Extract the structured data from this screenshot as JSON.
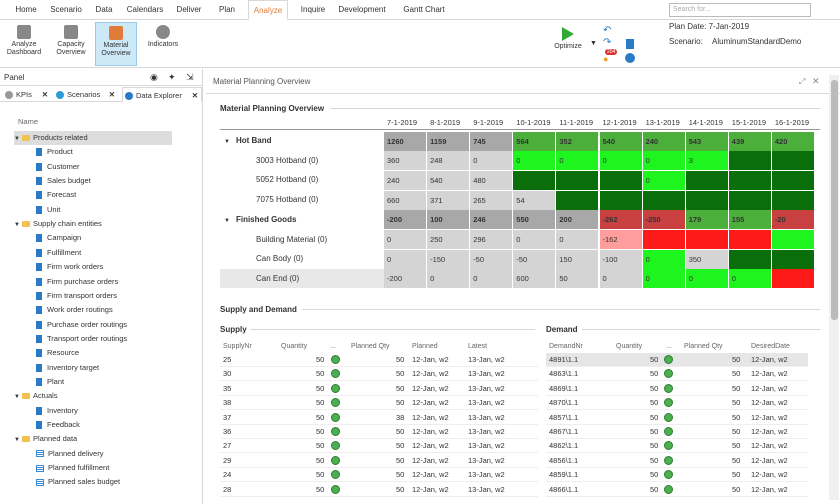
{
  "menu": {
    "tabs": [
      "Home",
      "Scenario",
      "Data",
      "Calendars",
      "Deliver",
      "Plan",
      "Analyze",
      "Inquire",
      "Development",
      "Gantt Chart"
    ],
    "active": "Analyze"
  },
  "ribbon": {
    "buttons": [
      "Analyze Dashboard",
      "Capacity Overview",
      "Material Overview",
      "Indicators"
    ],
    "active": "Material Overview",
    "optimize": "Optimize",
    "badge": "204",
    "search_placeholder": "Search for...",
    "plan_date": "Plan Date: 7-Jan-2019",
    "scenario_label": "Scenario:",
    "scenario_value": "AluminumStandardDemo"
  },
  "panel": {
    "title": "Panel",
    "tabs": [
      "KPIs",
      "Scenarios",
      "Data Explorer"
    ],
    "active_tab": "Data Explorer",
    "tree_header": "Name",
    "tree": [
      {
        "label": "Products related",
        "level": 0,
        "kind": "folder",
        "sel": true
      },
      {
        "label": "Product",
        "level": 1,
        "kind": "doc"
      },
      {
        "label": "Customer",
        "level": 1,
        "kind": "doc"
      },
      {
        "label": "Sales budget",
        "level": 1,
        "kind": "doc"
      },
      {
        "label": "Forecast",
        "level": 1,
        "kind": "doc"
      },
      {
        "label": "Unit",
        "level": 1,
        "kind": "doc"
      },
      {
        "label": "Supply chain entities",
        "level": 0,
        "kind": "folder"
      },
      {
        "label": "Campaign",
        "level": 1,
        "kind": "doc"
      },
      {
        "label": "Fulfillment",
        "level": 1,
        "kind": "doc"
      },
      {
        "label": "Firm work orders",
        "level": 1,
        "kind": "doc"
      },
      {
        "label": "Firm purchase orders",
        "level": 1,
        "kind": "doc"
      },
      {
        "label": "Firm transport orders",
        "level": 1,
        "kind": "doc"
      },
      {
        "label": "Work order routings",
        "level": 1,
        "kind": "doc"
      },
      {
        "label": "Purchase order routings",
        "level": 1,
        "kind": "doc"
      },
      {
        "label": "Transport order routings",
        "level": 1,
        "kind": "doc"
      },
      {
        "label": "Resource",
        "level": 1,
        "kind": "doc"
      },
      {
        "label": "Inventory target",
        "level": 1,
        "kind": "doc"
      },
      {
        "label": "Plant",
        "level": 1,
        "kind": "doc"
      },
      {
        "label": "Actuals",
        "level": 0,
        "kind": "folder"
      },
      {
        "label": "Inventory",
        "level": 1,
        "kind": "doc"
      },
      {
        "label": "Feedback",
        "level": 1,
        "kind": "doc"
      },
      {
        "label": "Planned data",
        "level": 0,
        "kind": "folder"
      },
      {
        "label": "Planned delivery",
        "level": 1,
        "kind": "table"
      },
      {
        "label": "Planned fulfillment",
        "level": 1,
        "kind": "table"
      },
      {
        "label": "Planned sales budget",
        "level": 1,
        "kind": "table"
      }
    ]
  },
  "main": {
    "title": "Material Planning Overview",
    "section1": "Material Planning Overview",
    "section2": "Supply and Demand",
    "supply": "Supply",
    "demand": "Demand",
    "dates": [
      "7-1-2019",
      "8-1-2019",
      "9-1-2019",
      "10-1-2019",
      "11-1-2019",
      "12-1-2019",
      "13-1-2019",
      "14-1-2019",
      "15-1-2019",
      "16-1-2019"
    ],
    "rows": [
      {
        "label": "Hot Band",
        "group": true,
        "values": [
          "1260",
          "1159",
          "745",
          "564",
          "352",
          "540",
          "240",
          "543",
          "439",
          "420"
        ],
        "colors": [
          "#a8a8a8",
          "#a8a8a8",
          "#a8a8a8",
          "#4caf3c",
          "#4caf3c",
          "#4caf3c",
          "#4caf3c",
          "#4caf3c",
          "#4caf3c",
          "#4caf3c"
        ]
      },
      {
        "label": "3003 Hotband (0)",
        "values": [
          "360",
          "248",
          "0",
          "0",
          "0",
          "0",
          "0",
          "3",
          "",
          ""
        ],
        "colors": [
          "#d4d4d4",
          "#d4d4d4",
          "#d4d4d4",
          "#1ef51e",
          "#1ef51e",
          "#1ef51e",
          "#1ef51e",
          "#1ef51e",
          "#0a6e0a",
          "#0a6e0a"
        ]
      },
      {
        "label": "5052 Hotband (0)",
        "values": [
          "240",
          "540",
          "480",
          "",
          "",
          "",
          "0",
          "",
          "",
          ""
        ],
        "colors": [
          "#d4d4d4",
          "#d4d4d4",
          "#d4d4d4",
          "#0a6e0a",
          "#0a6e0a",
          "#0a6e0a",
          "#1ef51e",
          "#0a6e0a",
          "#0a6e0a",
          "#0a6e0a"
        ]
      },
      {
        "label": "7075 Hotband (0)",
        "values": [
          "660",
          "371",
          "265",
          "54",
          "",
          "",
          "",
          "",
          "",
          ""
        ],
        "colors": [
          "#d4d4d4",
          "#d4d4d4",
          "#d4d4d4",
          "#d4d4d4",
          "#0a6e0a",
          "#0a6e0a",
          "#0a6e0a",
          "#0a6e0a",
          "#0a6e0a",
          "#0a6e0a"
        ]
      },
      {
        "label": "Finished Goods",
        "group": true,
        "values": [
          "-200",
          "100",
          "246",
          "550",
          "200",
          "-262",
          "-250",
          "179",
          "155",
          "-20"
        ],
        "colors": [
          "#a8a8a8",
          "#a8a8a8",
          "#a8a8a8",
          "#a8a8a8",
          "#a8a8a8",
          "#c84040",
          "#c84040",
          "#4caf3c",
          "#4caf3c",
          "#c84040"
        ]
      },
      {
        "label": "Building Material (0)",
        "values": [
          "0",
          "250",
          "296",
          "0",
          "0",
          "-162",
          "",
          "",
          "",
          ""
        ],
        "colors": [
          "#d4d4d4",
          "#d4d4d4",
          "#d4d4d4",
          "#d4d4d4",
          "#d4d4d4",
          "#ff9c9c",
          "#ff1a1a",
          "#ff1a1a",
          "#ff1a1a",
          "#1ef51e"
        ]
      },
      {
        "label": "Can Body (0)",
        "values": [
          "0",
          "-150",
          "-50",
          "-50",
          "150",
          "-100",
          "0",
          "350",
          "",
          ""
        ],
        "colors": [
          "#d4d4d4",
          "#d4d4d4",
          "#d4d4d4",
          "#d4d4d4",
          "#d4d4d4",
          "#d4d4d4",
          "#1ef51e",
          "#d4d4d4",
          "#0a6e0a",
          "#0a6e0a"
        ]
      },
      {
        "label": "Can End (0)",
        "values": [
          "-200",
          "0",
          "0",
          "600",
          "50",
          "0",
          "0",
          "0",
          "0",
          ""
        ],
        "colors": [
          "#d4d4d4",
          "#d4d4d4",
          "#d4d4d4",
          "#d4d4d4",
          "#d4d4d4",
          "#d4d4d4",
          "#1ef51e",
          "#1ef51e",
          "#1ef51e",
          "#ff1a1a"
        ]
      }
    ],
    "supply_headers": [
      "SupplyNr",
      "Quantity",
      "...",
      "Planned Qty",
      "Planned",
      "Latest"
    ],
    "supply_rows": [
      [
        "25",
        "50",
        "50",
        "12-Jan, w2",
        "13-Jan, w2"
      ],
      [
        "30",
        "50",
        "50",
        "12-Jan, w2",
        "13-Jan, w2"
      ],
      [
        "35",
        "50",
        "50",
        "12-Jan, w2",
        "13-Jan, w2"
      ],
      [
        "38",
        "50",
        "50",
        "12-Jan, w2",
        "13-Jan, w2"
      ],
      [
        "37",
        "50",
        "38",
        "12-Jan, w2",
        "13-Jan, w2"
      ],
      [
        "36",
        "50",
        "50",
        "12-Jan, w2",
        "13-Jan, w2"
      ],
      [
        "27",
        "50",
        "50",
        "12-Jan, w2",
        "13-Jan, w2"
      ],
      [
        "29",
        "50",
        "50",
        "12-Jan, w2",
        "13-Jan, w2"
      ],
      [
        "24",
        "50",
        "50",
        "12-Jan, w2",
        "13-Jan, w2"
      ],
      [
        "28",
        "50",
        "50",
        "12-Jan, w2",
        "13-Jan, w2"
      ]
    ],
    "demand_headers": [
      "DemandNr",
      "Quantity",
      "...",
      "Planned Qty",
      "DesiredDate"
    ],
    "demand_rows": [
      [
        "4891\\1.1",
        "50",
        "50",
        "12-Jan, w2"
      ],
      [
        "4863\\1.1",
        "50",
        "50",
        "12-Jan, w2"
      ],
      [
        "4869\\1.1",
        "50",
        "50",
        "12-Jan, w2"
      ],
      [
        "4870\\1.1",
        "50",
        "50",
        "12-Jan, w2"
      ],
      [
        "4857\\1.1",
        "50",
        "50",
        "12-Jan, w2"
      ],
      [
        "4867\\1.1",
        "50",
        "50",
        "12-Jan, w2"
      ],
      [
        "4862\\1.1",
        "50",
        "50",
        "12-Jan, w2"
      ],
      [
        "4856\\1.1",
        "50",
        "50",
        "12-Jan, w2"
      ],
      [
        "4859\\1.1",
        "50",
        "50",
        "12-Jan, w2"
      ],
      [
        "4866\\1.1",
        "50",
        "50",
        "12-Jan, w2"
      ]
    ]
  }
}
